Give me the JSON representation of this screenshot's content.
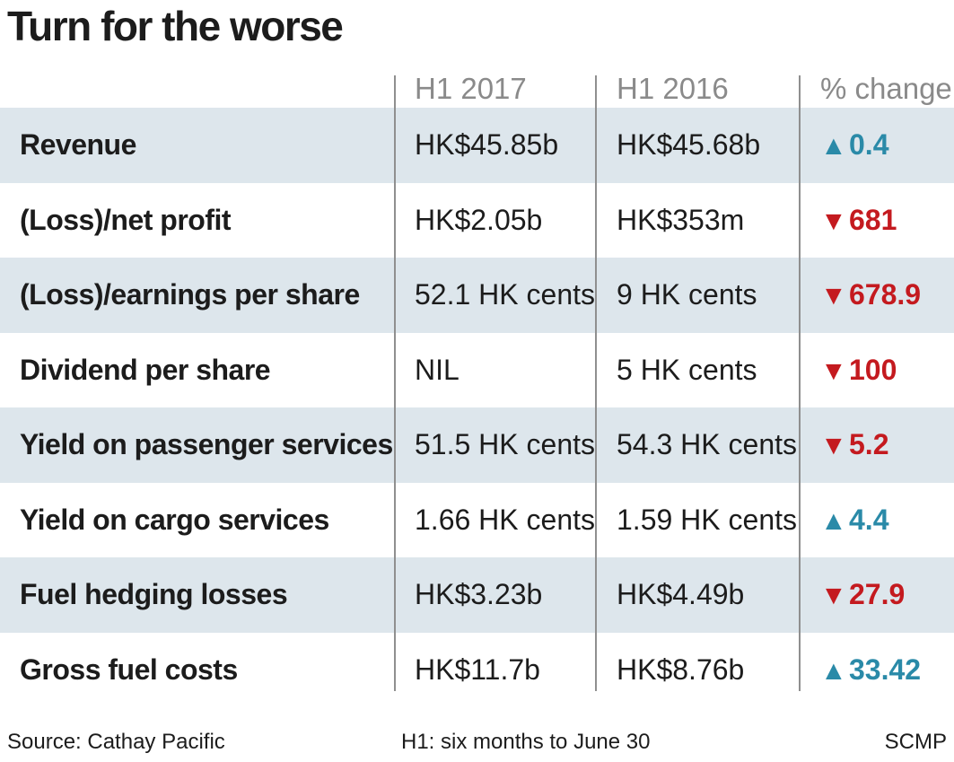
{
  "title": "Turn for the worse",
  "colors": {
    "up": "#2a8aa8",
    "down": "#c41a1f",
    "shade": "#dde6ec",
    "divider": "#8f8f8f"
  },
  "chart_data": {
    "type": "table",
    "columns": [
      "",
      "H1 2017",
      "H1 2016",
      "% change"
    ],
    "rows": [
      {
        "label": "Revenue",
        "h1_2017": "HK$45.85b",
        "h1_2016": "HK$45.68b",
        "direction": "up",
        "change": "0.4"
      },
      {
        "label": "(Loss)/net profit",
        "h1_2017": "HK$2.05b",
        "h1_2016": "HK$353m",
        "direction": "down",
        "change": "681"
      },
      {
        "label": "(Loss)/earnings per share",
        "h1_2017": "52.1 HK cents",
        "h1_2016": "9 HK cents",
        "direction": "down",
        "change": "678.9"
      },
      {
        "label": "Dividend per share",
        "h1_2017": "NIL",
        "h1_2016": "5 HK cents",
        "direction": "down",
        "change": "100"
      },
      {
        "label": "Yield on passenger services",
        "h1_2017": "51.5 HK cents",
        "h1_2016": "54.3 HK cents",
        "direction": "down",
        "change": "5.2"
      },
      {
        "label": "Yield on cargo services",
        "h1_2017": "1.66 HK cents",
        "h1_2016": "1.59 HK cents",
        "direction": "up",
        "change": "4.4"
      },
      {
        "label": "Fuel hedging losses",
        "h1_2017": "HK$3.23b",
        "h1_2016": "HK$4.49b",
        "direction": "down",
        "change": "27.9"
      },
      {
        "label": "Gross fuel costs",
        "h1_2017": "HK$11.7b",
        "h1_2016": "HK$8.76b",
        "direction": "up",
        "change": "33.42"
      }
    ]
  },
  "footer": {
    "source": "Source: Cathay Pacific",
    "note": "H1: six months to June 30",
    "credit": "SCMP"
  }
}
